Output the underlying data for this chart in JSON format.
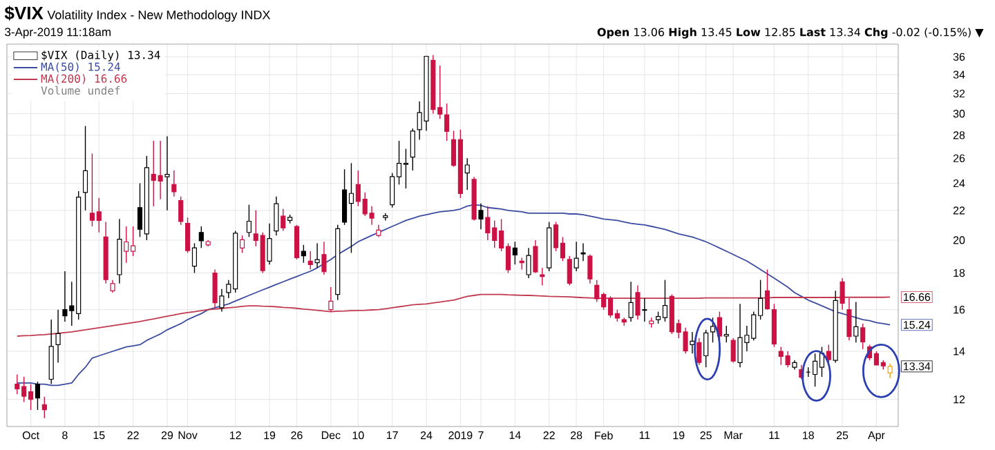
{
  "chart_data": {
    "type": "candlestick",
    "title": "$VIX",
    "subtitle": "Volatility Index - New Methodology INDX",
    "annotations": [
      "3-Apr-2019 11:18am",
      "**Open** 13.06 **High** 13.45 **Low** 12.85 **Last** 13.34 **Chg** -0.02 (-0.15%) ▼",
      "Volume undef",
      {
        "text": "16.66",
        "y": 16.66
      },
      {
        "text": "15.24",
        "y": 15.24
      },
      {
        "text": "13.34",
        "y": 13.34
      }
    ],
    "categories": [
      null,
      null,
      "Oct",
      null,
      null,
      null,
      null,
      "8",
      null,
      null,
      null,
      null,
      "15",
      null,
      null,
      null,
      null,
      "22",
      null,
      null,
      null,
      null,
      "29",
      null,
      null,
      "Nov",
      null,
      null,
      null,
      null,
      null,
      null,
      "12",
      null,
      null,
      null,
      null,
      "19",
      null,
      null,
      null,
      "26",
      null,
      null,
      null,
      null,
      "Dec",
      null,
      null,
      null,
      "10",
      null,
      null,
      null,
      null,
      "17",
      null,
      null,
      null,
      null,
      "24",
      null,
      null,
      null,
      null,
      "2019",
      null,
      null,
      "7",
      null,
      null,
      null,
      null,
      "14",
      null,
      null,
      null,
      null,
      "22",
      null,
      null,
      null,
      "28",
      null,
      null,
      null,
      "Feb",
      null,
      null,
      null,
      null,
      null,
      "11",
      null,
      null,
      null,
      null,
      "19",
      null,
      null,
      null,
      "25",
      null,
      null,
      null,
      "Mar",
      null,
      null,
      null,
      null,
      null,
      "11",
      null,
      null,
      null,
      null,
      "18",
      null,
      null,
      null,
      null,
      "25",
      null,
      null,
      null,
      null,
      "Apr",
      null,
      null
    ],
    "log": true,
    "ylim": [
      11,
      37.5
    ],
    "yticks": [
      12,
      14,
      16,
      18,
      20,
      22,
      24,
      26,
      28,
      30,
      32,
      34,
      36
    ],
    "grid": true,
    "legend": "top left",
    "series": [
      {
        "name": "$VIX (Daily) 13.34",
        "ohlc": [
          [
            12.6,
            13.0,
            12.2,
            12.41
          ],
          [
            12.5,
            12.9,
            11.9,
            12.12
          ],
          [
            12.3,
            12.6,
            11.6,
            12.0
          ],
          [
            12.6,
            12.7,
            11.6,
            12.05
          ],
          [
            11.8,
            12.1,
            11.3,
            11.61
          ],
          [
            12.8,
            15.5,
            12.6,
            14.22
          ],
          [
            14.3,
            16.0,
            13.5,
            14.82
          ],
          [
            16.0,
            18.1,
            15.4,
            15.69
          ],
          [
            16.2,
            17.5,
            15.2,
            15.95
          ],
          [
            15.8,
            23.4,
            15.5,
            22.96
          ],
          [
            23.3,
            28.84,
            22.0,
            24.98
          ],
          [
            21.8,
            26.4,
            20.9,
            21.31
          ],
          [
            21.9,
            22.9,
            20.5,
            21.3
          ],
          [
            20.2,
            21.2,
            17.4,
            17.62
          ],
          [
            17.0,
            17.6,
            16.9,
            17.4
          ],
          [
            17.9,
            21.4,
            17.4,
            20.06
          ],
          [
            19.3,
            20.9,
            18.6,
            19.89
          ],
          [
            19.3,
            20.9,
            19.0,
            19.64
          ],
          [
            22.2,
            24.0,
            20.2,
            20.71
          ],
          [
            20.4,
            26.2,
            20.0,
            25.23
          ],
          [
            24.7,
            27.5,
            22.3,
            24.22
          ],
          [
            24.6,
            27.5,
            22.8,
            24.16
          ],
          [
            24.5,
            27.9,
            22.0,
            24.7
          ],
          [
            23.9,
            25.0,
            23.0,
            23.35
          ],
          [
            22.7,
            23.0,
            21.0,
            21.23
          ],
          [
            21.1,
            21.5,
            19.2,
            19.34
          ],
          [
            18.4,
            19.8,
            18.0,
            19.51
          ],
          [
            20.5,
            20.9,
            19.5,
            19.96
          ],
          [
            19.7,
            20.0,
            19.6,
            19.91
          ],
          [
            18.0,
            18.2,
            16.1,
            16.36
          ],
          [
            16.1,
            17.1,
            15.9,
            16.72
          ],
          [
            16.9,
            17.6,
            16.6,
            17.36
          ],
          [
            17.1,
            20.6,
            16.9,
            20.45
          ],
          [
            19.5,
            20.3,
            19.2,
            20.02
          ],
          [
            20.5,
            22.4,
            20.2,
            21.25
          ],
          [
            20.4,
            22.0,
            19.6,
            19.98
          ],
          [
            20.3,
            20.5,
            18.0,
            18.14
          ],
          [
            18.7,
            21.1,
            18.5,
            20.1
          ],
          [
            20.6,
            23.0,
            20.3,
            22.48
          ],
          [
            21.6,
            22.1,
            20.6,
            20.8
          ],
          [
            21.3,
            21.7,
            21.1,
            21.52
          ],
          [
            20.9,
            21.0,
            18.8,
            18.9
          ],
          [
            19.3,
            19.7,
            18.6,
            19.02
          ],
          [
            18.7,
            19.3,
            18.2,
            18.49
          ],
          [
            18.6,
            19.8,
            18.3,
            18.79
          ],
          [
            19.1,
            19.9,
            17.9,
            18.07
          ],
          [
            16.0,
            17.2,
            15.9,
            16.44
          ],
          [
            16.8,
            21.0,
            16.5,
            20.74
          ],
          [
            23.5,
            25.1,
            21.0,
            21.19
          ],
          [
            22.5,
            25.6,
            19.2,
            23.23
          ],
          [
            23.9,
            25.0,
            22.3,
            22.64
          ],
          [
            22.8,
            23.3,
            21.6,
            21.76
          ],
          [
            21.8,
            22.3,
            21.0,
            21.46
          ],
          [
            20.3,
            21.0,
            20.2,
            20.65
          ],
          [
            21.5,
            21.8,
            21.3,
            21.63
          ],
          [
            22.4,
            24.8,
            22.2,
            24.52
          ],
          [
            24.5,
            27.5,
            23.9,
            25.58
          ],
          [
            25.5,
            26.8,
            23.6,
            25.58
          ],
          [
            26.1,
            28.6,
            25.0,
            28.38
          ],
          [
            28.5,
            31.2,
            27.6,
            30.11
          ],
          [
            29.3,
            36.1,
            28.4,
            36.07
          ],
          [
            35.6,
            36.2,
            30.0,
            30.41
          ],
          [
            30.6,
            35.0,
            29.5,
            29.96
          ],
          [
            29.9,
            31.0,
            27.5,
            28.34
          ],
          [
            27.6,
            28.4,
            25.3,
            25.42
          ],
          [
            27.6,
            28.5,
            22.9,
            23.22
          ],
          [
            24.8,
            26.0,
            23.5,
            25.45
          ],
          [
            24.3,
            24.5,
            21.3,
            21.38
          ],
          [
            22.0,
            22.5,
            20.7,
            21.4
          ],
          [
            21.5,
            22.3,
            20.0,
            20.47
          ],
          [
            20.8,
            21.3,
            19.5,
            19.98
          ],
          [
            20.6,
            21.4,
            19.3,
            19.5
          ],
          [
            19.6,
            19.8,
            18.0,
            18.19
          ],
          [
            19.5,
            19.9,
            18.5,
            19.07
          ],
          [
            18.7,
            18.9,
            18.2,
            18.6
          ],
          [
            17.9,
            19.5,
            17.7,
            19.04
          ],
          [
            19.6,
            20.0,
            18.0,
            18.06
          ],
          [
            17.9,
            18.3,
            17.3,
            17.8
          ],
          [
            18.3,
            21.2,
            18.1,
            20.8
          ],
          [
            21.0,
            21.2,
            19.3,
            19.52
          ],
          [
            19.8,
            20.2,
            18.7,
            18.89
          ],
          [
            18.8,
            19.0,
            17.3,
            17.42
          ],
          [
            18.3,
            19.9,
            18.1,
            18.87
          ],
          [
            19.2,
            19.8,
            18.7,
            19.13
          ],
          [
            19.0,
            19.1,
            17.4,
            17.66
          ],
          [
            17.3,
            17.6,
            16.4,
            16.57
          ],
          [
            16.8,
            16.9,
            16.0,
            16.14
          ],
          [
            16.6,
            16.7,
            15.6,
            15.73
          ],
          [
            15.8,
            16.0,
            15.4,
            15.57
          ],
          [
            15.5,
            15.6,
            15.2,
            15.38
          ],
          [
            15.6,
            17.5,
            15.4,
            16.37
          ],
          [
            16.9,
            17.3,
            15.5,
            15.72
          ],
          [
            16.0,
            16.6,
            15.4,
            15.97
          ],
          [
            15.3,
            15.6,
            15.1,
            15.43
          ],
          [
            15.5,
            15.9,
            15.3,
            15.65
          ],
          [
            15.6,
            17.6,
            15.4,
            16.22
          ],
          [
            16.7,
            16.8,
            14.8,
            14.91
          ],
          [
            15.3,
            15.5,
            14.6,
            14.88
          ],
          [
            14.9,
            15.1,
            13.9,
            14.02
          ],
          [
            14.3,
            14.9,
            13.9,
            14.46
          ],
          [
            14.4,
            14.6,
            13.4,
            13.51
          ],
          [
            13.8,
            15.0,
            13.3,
            14.85
          ],
          [
            14.9,
            15.6,
            14.4,
            15.17
          ],
          [
            15.6,
            15.9,
            14.5,
            14.7
          ],
          [
            14.7,
            15.2,
            14.4,
            14.78
          ],
          [
            14.5,
            14.6,
            13.5,
            13.57
          ],
          [
            13.5,
            16.3,
            13.3,
            14.63
          ],
          [
            14.4,
            15.2,
            14.0,
            14.74
          ],
          [
            14.6,
            15.9,
            14.5,
            15.74
          ],
          [
            15.7,
            17.6,
            15.5,
            16.59
          ],
          [
            17.0,
            18.2,
            16.0,
            16.05
          ],
          [
            16.0,
            16.3,
            14.2,
            14.33
          ],
          [
            14.0,
            14.2,
            13.4,
            13.77
          ],
          [
            13.8,
            14.0,
            13.3,
            13.41
          ],
          [
            13.3,
            13.6,
            13.2,
            13.5
          ],
          [
            13.2,
            13.4,
            12.8,
            12.88
          ],
          [
            13.1,
            13.3,
            12.9,
            13.1
          ],
          [
            13.0,
            13.9,
            12.5,
            13.56
          ],
          [
            13.3,
            14.2,
            12.9,
            13.91
          ],
          [
            14.0,
            14.3,
            13.4,
            13.63
          ],
          [
            13.6,
            17.0,
            13.5,
            16.48
          ],
          [
            17.5,
            17.7,
            16.0,
            16.33
          ],
          [
            16.0,
            16.6,
            14.5,
            14.68
          ],
          [
            14.7,
            16.4,
            14.4,
            15.15
          ],
          [
            15.1,
            15.3,
            14.1,
            14.43
          ],
          [
            14.2,
            14.3,
            13.6,
            13.71
          ],
          [
            13.9,
            14.0,
            13.4,
            13.4
          ],
          [
            13.5,
            13.6,
            13.2,
            13.36
          ],
          [
            13.06,
            13.45,
            12.85,
            13.34
          ]
        ],
        "colors": [
          "#cc1144",
          "#cc1144",
          "#cc1144",
          "#000000",
          "#cc1144",
          "#000000",
          "#000000",
          "#000000",
          "#000000",
          "#000000",
          "#000000",
          "#cc1144",
          "#cc1144",
          "#cc1144",
          "#cc1144",
          "#000000",
          "#cc1144",
          "#cc1144",
          "#000000",
          "#000000",
          "#cc1144",
          "#cc1144",
          "#000000",
          "#cc1144",
          "#cc1144",
          "#cc1144",
          "#000000",
          "#000000",
          "#cc1144",
          "#cc1144",
          "#000000",
          "#000000",
          "#000000",
          "#cc1144",
          "#000000",
          "#cc1144",
          "#cc1144",
          "#000000",
          "#000000",
          "#cc1144",
          "#000000",
          "#cc1144",
          "#000000",
          "#cc1144",
          "#000000",
          "#cc1144",
          "#cc1144",
          "#000000",
          "#000000",
          "#000000",
          "#cc1144",
          "#cc1144",
          "#cc1144",
          "#cc1144",
          "#000000",
          "#000000",
          "#000000",
          "#000000",
          "#000000",
          "#000000",
          "#000000",
          "#cc1144",
          "#cc1144",
          "#cc1144",
          "#cc1144",
          "#cc1144",
          "#000000",
          "#cc1144",
          "#000000",
          "#cc1144",
          "#cc1144",
          "#cc1144",
          "#cc1144",
          "#000000",
          "#cc1144",
          "#000000",
          "#cc1144",
          "#cc1144",
          "#000000",
          "#cc1144",
          "#cc1144",
          "#cc1144",
          "#000000",
          "#000000",
          "#cc1144",
          "#cc1144",
          "#cc1144",
          "#cc1144",
          "#cc1144",
          "#cc1144",
          "#000000",
          "#cc1144",
          "#000000",
          "#cc1144",
          "#000000",
          "#000000",
          "#cc1144",
          "#cc1144",
          "#cc1144",
          "#000000",
          "#cc1144",
          "#000000",
          "#000000",
          "#cc1144",
          "#000000",
          "#cc1144",
          "#000000",
          "#000000",
          "#000000",
          "#000000",
          "#cc1144",
          "#cc1144",
          "#cc1144",
          "#cc1144",
          "#000000",
          "#cc1144",
          "#000000",
          "#000000",
          "#000000",
          "#cc1144",
          "#000000",
          "#cc1144",
          "#cc1144",
          "#000000",
          "#cc1144",
          "#cc1144",
          "#cc1144",
          "#cc1144",
          "#f0a000"
        ]
      },
      {
        "name": "MA(50) 15.24",
        "type": "line",
        "color": "#3b4ba0",
        "values": [
          12.65,
          12.65,
          12.65,
          12.6,
          12.6,
          12.55,
          12.55,
          12.6,
          12.65,
          13.0,
          13.3,
          13.7,
          13.8,
          13.9,
          14.0,
          14.1,
          14.2,
          14.25,
          14.3,
          14.5,
          14.65,
          14.8,
          15.0,
          15.15,
          15.3,
          15.5,
          15.65,
          15.8,
          16.0,
          16.1,
          16.2,
          16.3,
          16.45,
          16.6,
          16.75,
          16.9,
          17.05,
          17.2,
          17.35,
          17.5,
          17.65,
          17.8,
          17.95,
          18.1,
          18.3,
          18.55,
          18.8,
          19.1,
          19.35,
          19.6,
          19.9,
          20.1,
          20.3,
          20.5,
          20.7,
          20.9,
          21.1,
          21.3,
          21.45,
          21.6,
          21.7,
          21.8,
          21.9,
          21.95,
          22.0,
          22.1,
          22.3,
          22.4,
          22.35,
          22.2,
          22.15,
          22.1,
          22.0,
          21.95,
          21.9,
          21.8,
          21.8,
          21.8,
          21.8,
          21.8,
          21.8,
          21.75,
          21.75,
          21.7,
          21.6,
          21.5,
          21.4,
          21.35,
          21.3,
          21.2,
          21.1,
          21.05,
          21.0,
          20.9,
          20.8,
          20.7,
          20.55,
          20.4,
          20.3,
          20.2,
          20.05,
          19.9,
          19.7,
          19.5,
          19.3,
          19.1,
          18.9,
          18.7,
          18.45,
          18.2,
          17.95,
          17.7,
          17.45,
          17.2,
          16.9,
          16.7,
          16.5,
          16.35,
          16.2,
          16.05,
          15.9,
          15.8,
          15.7,
          15.6,
          15.5,
          15.45,
          15.35,
          15.3,
          15.24
        ]
      },
      {
        "name": "MA(200) 16.66",
        "type": "line",
        "color": "#c0394f",
        "values": [
          14.7,
          14.72,
          14.73,
          14.75,
          14.77,
          14.8,
          14.83,
          14.87,
          14.9,
          14.95,
          15.0,
          15.05,
          15.1,
          15.15,
          15.2,
          15.25,
          15.3,
          15.35,
          15.4,
          15.47,
          15.53,
          15.6,
          15.67,
          15.73,
          15.8,
          15.85,
          15.9,
          15.95,
          16.0,
          16.03,
          16.07,
          16.1,
          16.13,
          16.17,
          16.2,
          16.2,
          16.18,
          16.17,
          16.15,
          16.12,
          16.1,
          16.07,
          16.03,
          16.0,
          15.97,
          15.93,
          15.9,
          15.92,
          15.93,
          15.95,
          15.96,
          15.97,
          15.99,
          16.0,
          16.05,
          16.1,
          16.15,
          16.2,
          16.25,
          16.28,
          16.3,
          16.35,
          16.4,
          16.45,
          16.5,
          16.6,
          16.7,
          16.75,
          16.8,
          16.8,
          16.8,
          16.8,
          16.78,
          16.77,
          16.76,
          16.75,
          16.74,
          16.72,
          16.7,
          16.69,
          16.68,
          16.67,
          16.65,
          16.63,
          16.62,
          16.6,
          16.6,
          16.6,
          16.6,
          16.6,
          16.6,
          16.6,
          16.6,
          16.6,
          16.6,
          16.6,
          16.6,
          16.6,
          16.6,
          16.6,
          16.6,
          16.62,
          16.62,
          16.62,
          16.62,
          16.62,
          16.62,
          16.62,
          16.62,
          16.62,
          16.62,
          16.64,
          16.64,
          16.64,
          16.64,
          16.64,
          16.64,
          16.64,
          16.64,
          16.64,
          16.64,
          16.65,
          16.65,
          16.65,
          16.65,
          16.65,
          16.65,
          16.65,
          16.66
        ]
      }
    ]
  }
}
